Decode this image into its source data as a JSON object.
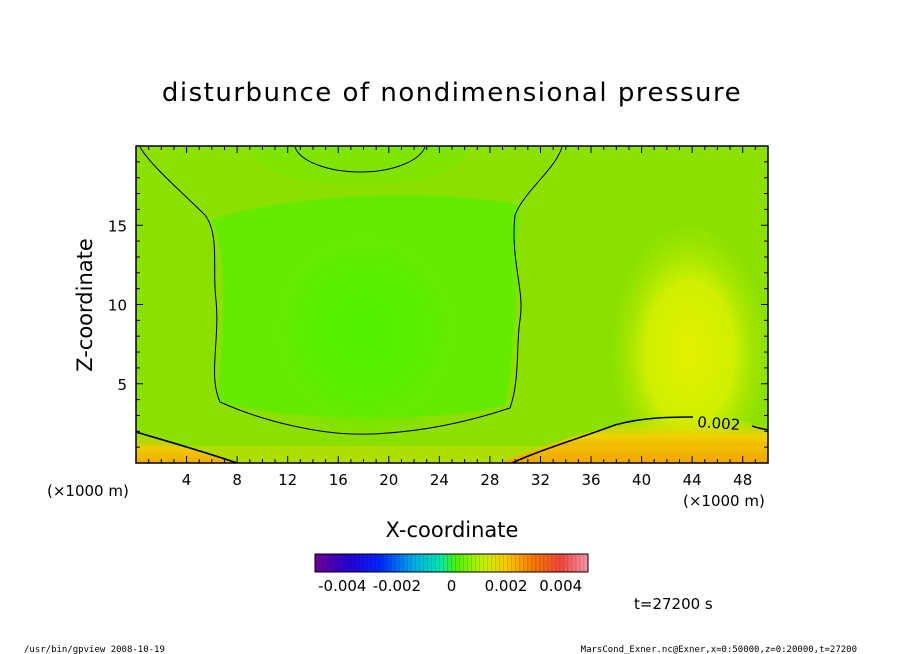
{
  "chart_data": {
    "type": "heatmap",
    "title": "disturbunce of nondimensional pressure",
    "xlabel": "X-coordinate",
    "ylabel": "Z-coordinate",
    "x_unit": "(×1000 m)",
    "y_unit": "(×1000 m)",
    "xlim": [
      0,
      50
    ],
    "ylim": [
      0,
      20
    ],
    "x_ticks": [
      4,
      8,
      12,
      16,
      20,
      24,
      28,
      32,
      36,
      40,
      44,
      48
    ],
    "y_ticks": [
      5,
      10,
      15
    ],
    "contour_levels": [
      {
        "value": 0.002,
        "label": "0.002"
      },
      {
        "value": 0.0,
        "label": ""
      },
      {
        "value": -0.001,
        "label": ""
      }
    ],
    "colorbar": {
      "min": -0.005,
      "max": 0.005,
      "ticks": [
        -0.004,
        -0.002,
        0,
        0.002,
        0.004
      ],
      "tick_labels": [
        "-0.004",
        "-0.002",
        "0",
        "0.002",
        "0.004"
      ]
    },
    "colors": {
      "field_background": "#8be000",
      "minimum_region": "#5af000",
      "maximum_region": "#ddf000",
      "bottom_boundary": "#f09000"
    },
    "annotation_time": "t=27200 s",
    "footer_left": "/usr/bin/gpview   2008-10-19",
    "footer_right": "MarsCond_Exner.nc@Exner,x=0:50000,z=0:20000,t=27200"
  }
}
